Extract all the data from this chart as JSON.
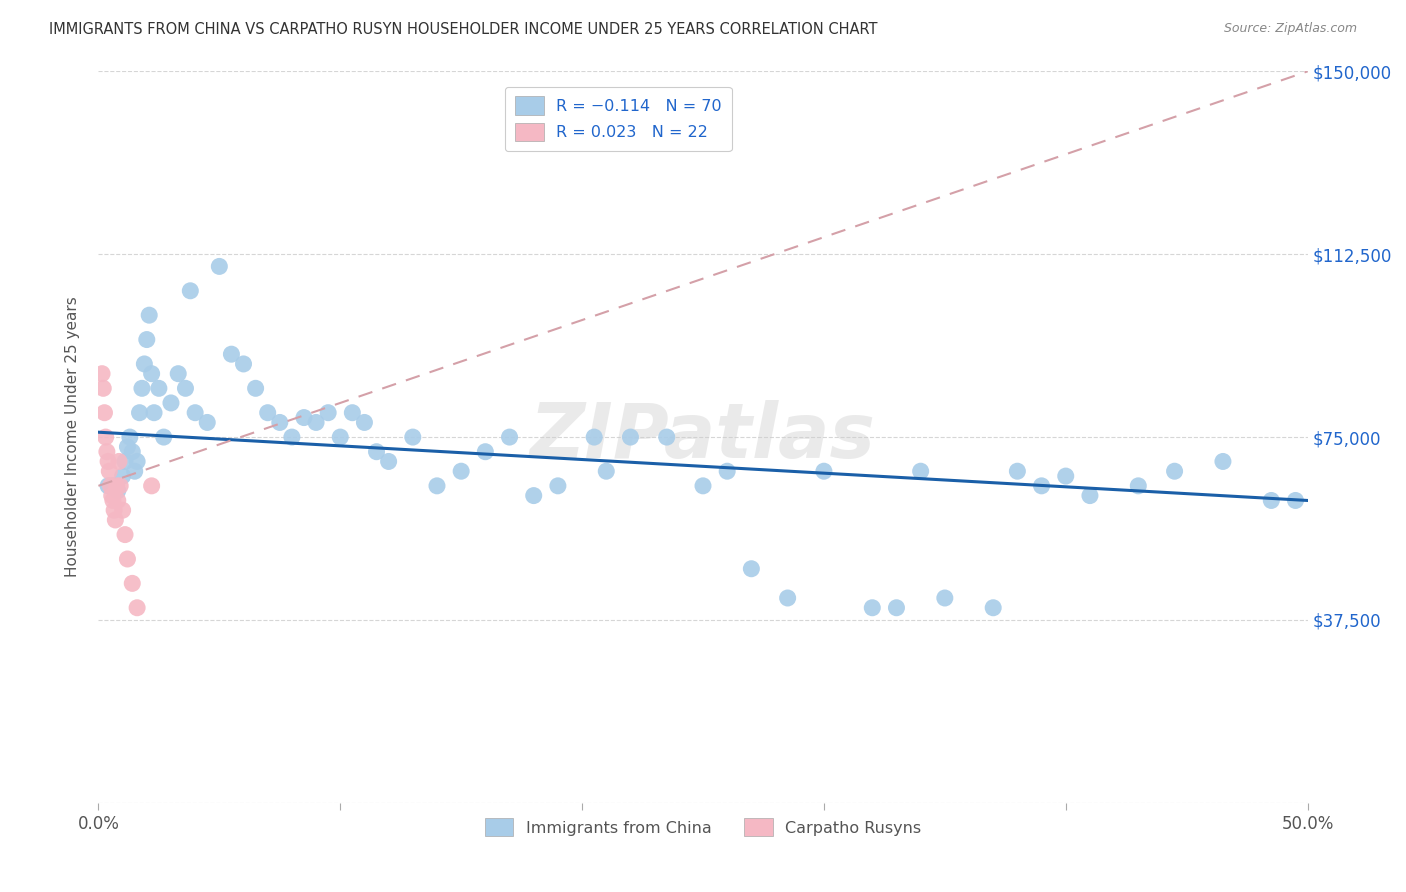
{
  "title": "IMMIGRANTS FROM CHINA VS CARPATHO RUSYN HOUSEHOLDER INCOME UNDER 25 YEARS CORRELATION CHART",
  "source": "Source: ZipAtlas.com",
  "ylabel": "Householder Income Under 25 years",
  "yticks": [
    0,
    37500,
    75000,
    112500,
    150000
  ],
  "ytick_labels": [
    "",
    "$37,500",
    "$75,000",
    "$112,500",
    "$150,000"
  ],
  "legend_label1": "Immigrants from China",
  "legend_label2": "Carpatho Rusyns",
  "blue_color": "#a8cce8",
  "pink_color": "#f5b8c4",
  "trendline_blue_color": "#1a5fa8",
  "trendline_pink_color": "#d4a0a8",
  "background_color": "#ffffff",
  "grid_color": "#cccccc",
  "title_color": "#333333",
  "axis_label_color": "#555555",
  "right_label_color": "#2166cc",
  "xmin": 0.0,
  "xmax": 50.0,
  "ymin": 0,
  "ymax": 150000,
  "blue_trend_x": [
    0,
    50
  ],
  "blue_trend_y": [
    76000,
    62000
  ],
  "pink_trend_x": [
    0,
    50
  ],
  "pink_trend_y": [
    65000,
    150000
  ],
  "blue_x": [
    0.4,
    0.6,
    0.8,
    1.0,
    1.1,
    1.2,
    1.3,
    1.4,
    1.5,
    1.6,
    1.7,
    1.8,
    1.9,
    2.0,
    2.1,
    2.2,
    2.3,
    2.5,
    2.7,
    3.0,
    3.3,
    3.6,
    4.0,
    4.5,
    5.0,
    5.5,
    6.0,
    6.5,
    7.0,
    7.5,
    8.0,
    8.5,
    9.0,
    9.5,
    10.0,
    10.5,
    11.0,
    11.5,
    12.0,
    13.0,
    14.0,
    15.0,
    16.0,
    17.0,
    18.0,
    19.0,
    20.5,
    21.0,
    22.0,
    23.5,
    25.0,
    26.0,
    27.0,
    28.5,
    30.0,
    32.0,
    33.0,
    34.0,
    35.0,
    37.0,
    38.0,
    39.0,
    40.0,
    41.0,
    43.0,
    44.5,
    46.5,
    48.5,
    49.5,
    3.8
  ],
  "blue_y": [
    65000,
    65000,
    64000,
    67000,
    70000,
    73000,
    75000,
    72000,
    68000,
    70000,
    80000,
    85000,
    90000,
    95000,
    100000,
    88000,
    80000,
    85000,
    75000,
    82000,
    88000,
    85000,
    80000,
    78000,
    110000,
    92000,
    90000,
    85000,
    80000,
    78000,
    75000,
    79000,
    78000,
    80000,
    75000,
    80000,
    78000,
    72000,
    70000,
    75000,
    65000,
    68000,
    72000,
    75000,
    63000,
    65000,
    75000,
    68000,
    75000,
    75000,
    65000,
    68000,
    48000,
    42000,
    68000,
    40000,
    40000,
    68000,
    42000,
    40000,
    68000,
    65000,
    67000,
    63000,
    65000,
    68000,
    70000,
    62000,
    62000,
    105000
  ],
  "pink_x": [
    0.15,
    0.2,
    0.25,
    0.3,
    0.35,
    0.4,
    0.45,
    0.5,
    0.55,
    0.6,
    0.65,
    0.7,
    0.75,
    0.8,
    0.85,
    0.9,
    1.0,
    1.1,
    1.2,
    1.4,
    1.6,
    2.2
  ],
  "pink_y": [
    88000,
    85000,
    80000,
    75000,
    72000,
    70000,
    68000,
    65000,
    63000,
    62000,
    60000,
    58000,
    65000,
    62000,
    70000,
    65000,
    60000,
    55000,
    50000,
    45000,
    40000,
    65000
  ],
  "figwidth": 14.06,
  "figheight": 8.92,
  "dpi": 100
}
